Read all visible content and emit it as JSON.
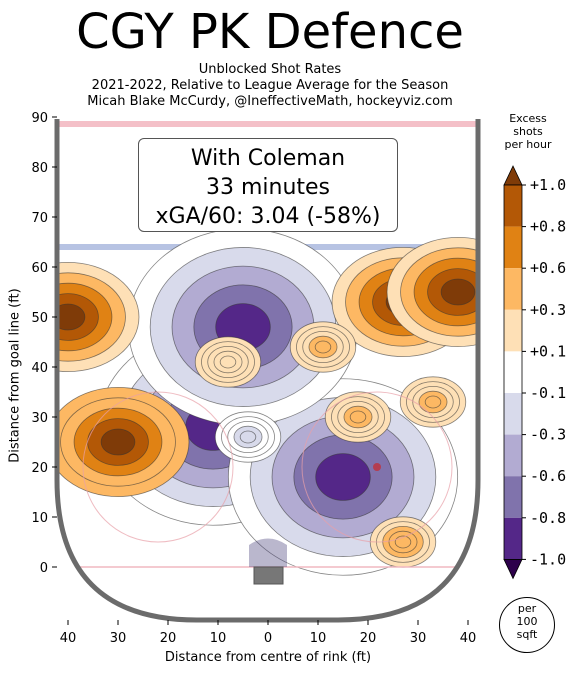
{
  "header": {
    "title": "CGY PK Defence",
    "subtitle_1": "Unblocked Shot Rates",
    "subtitle_2": "2021-2022, Relative to League Average for the Season",
    "subtitle_3": "Micah Blake McCurdy, @IneffectiveMath, hockeyviz.com"
  },
  "infobox": {
    "line_1": "With Coleman",
    "line_2": "33 minutes",
    "line_3": "xGA/60: 3.04 (-58%)"
  },
  "colorbar": {
    "title_1": "Excess",
    "title_2": "shots",
    "title_3": "per hour",
    "levels": [
      "+1.0",
      "+0.8",
      "+0.6",
      "+0.3",
      "+0.1",
      "-0.1",
      "-0.3",
      "-0.6",
      "-0.8",
      "-1.0"
    ],
    "colors": [
      "#7f3b08",
      "#b35806",
      "#e08214",
      "#fdb863",
      "#fee0b6",
      "#ffffff",
      "#d8daeb",
      "#b2abd2",
      "#8073ac",
      "#542788",
      "#2d004b"
    ],
    "unit_1": "per",
    "unit_2": "100",
    "unit_3": "sqft"
  },
  "chart_data": {
    "type": "heatmap",
    "xlabel": "Distance from centre of rink (ft)",
    "ylabel": "Distance from goal line (ft)",
    "xlim": [
      42,
      -42
    ],
    "ylim": [
      -11,
      90
    ],
    "xticks": [
      40,
      30,
      20,
      10,
      0,
      10,
      20,
      30,
      40
    ],
    "yticks": [
      0,
      10,
      20,
      30,
      40,
      50,
      60,
      70,
      80,
      90
    ],
    "regions": [
      {
        "x": 11,
        "y": 28,
        "value": -1.0
      },
      {
        "x": -15,
        "y": 18,
        "value": -1.0
      },
      {
        "x": 5,
        "y": 48,
        "value": -1.0
      },
      {
        "x": 40,
        "y": 50,
        "value": 0.9
      },
      {
        "x": 30,
        "y": 25,
        "value": 1.0
      },
      {
        "x": -27,
        "y": 53,
        "value": 0.9
      },
      {
        "x": -38,
        "y": 55,
        "value": 0.9
      },
      {
        "x": -27,
        "y": 5,
        "value": 0.4
      },
      {
        "x": -11,
        "y": 44,
        "value": 0.3
      },
      {
        "x": -18,
        "y": 30,
        "value": 0.3
      },
      {
        "x": -33,
        "y": 33,
        "value": 0.3
      },
      {
        "x": 8,
        "y": 41,
        "value": 0.1
      },
      {
        "x": 4,
        "y": 26,
        "value": -0.3
      }
    ]
  }
}
